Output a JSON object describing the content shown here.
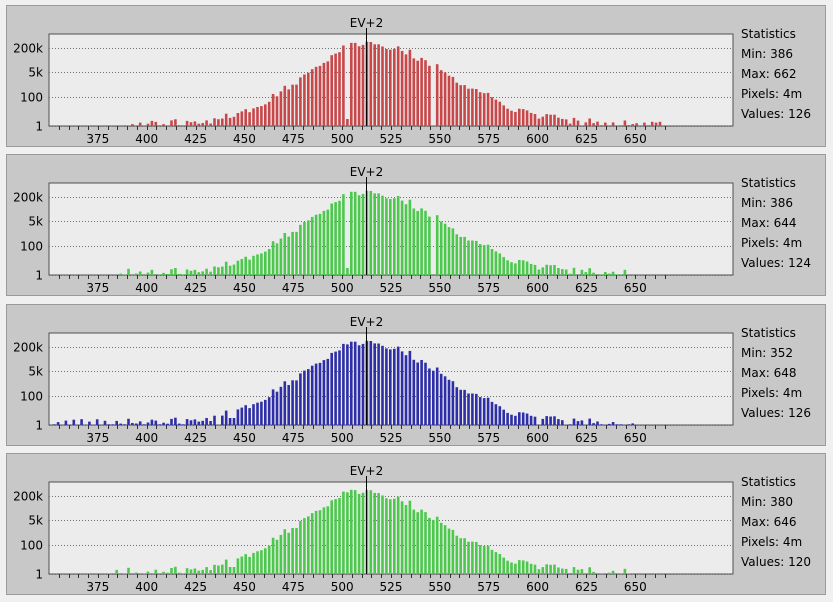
{
  "chart_data": [
    {
      "type": "bar",
      "title": "EV+2",
      "color": "#c8484a",
      "y_scale": "log",
      "ylim": [
        1,
        1000000
      ],
      "y_ticks": [
        {
          "label": "200k",
          "value": 200000
        },
        {
          "label": "5k",
          "value": 5000
        },
        {
          "label": "100",
          "value": 100
        },
        {
          "label": "1",
          "value": 1
        }
      ],
      "x_ticks": [
        "375",
        "400",
        "425",
        "450",
        "475",
        "500",
        "525",
        "550",
        "575",
        "600",
        "625",
        "650"
      ],
      "xlim": [
        350,
        700
      ],
      "marker_x": 512,
      "stats": {
        "heading": "Statistics",
        "min": "Min: 386",
        "max": "Max: 662",
        "pixels": "Pixels: 4m",
        "values": "Values: 126"
      },
      "profile": {
        "peak": 512,
        "left_width": 32,
        "right_width": 42,
        "min": 386,
        "max": 662,
        "gaps": [
          386,
          390,
          394,
          398,
          410,
          546,
          622,
          636,
          640,
          652
        ],
        "dip": [
          502,
          2
        ]
      }
    },
    {
      "type": "bar",
      "title": "EV+2",
      "color": "#4cc84c",
      "y_scale": "log",
      "ylim": [
        1,
        1000000
      ],
      "y_ticks": [
        {
          "label": "200k",
          "value": 200000
        },
        {
          "label": "5k",
          "value": 5000
        },
        {
          "label": "100",
          "value": 100
        },
        {
          "label": "1",
          "value": 1
        }
      ],
      "x_ticks": [
        "375",
        "400",
        "425",
        "450",
        "475",
        "500",
        "525",
        "550",
        "575",
        "600",
        "625",
        "650"
      ],
      "xlim": [
        350,
        700
      ],
      "marker_x": 512,
      "stats": {
        "heading": "Statistics",
        "min": "Min: 386",
        "max": "Max: 644",
        "pixels": "Pixels: 4m",
        "values": "Values: 124"
      },
      "profile": {
        "peak": 512,
        "left_width": 33,
        "right_width": 40,
        "min": 386,
        "max": 644,
        "gaps": [
          392,
          398,
          404,
          546,
          620,
          630
        ],
        "dip": [
          502,
          2
        ]
      }
    },
    {
      "type": "bar",
      "title": "EV+2",
      "color": "#2e2ea8",
      "y_scale": "log",
      "ylim": [
        1,
        1000000
      ],
      "y_ticks": [
        {
          "label": "200k",
          "value": 200000
        },
        {
          "label": "5k",
          "value": 5000
        },
        {
          "label": "100",
          "value": 100
        },
        {
          "label": "1",
          "value": 1
        }
      ],
      "x_ticks": [
        "375",
        "400",
        "425",
        "450",
        "475",
        "500",
        "525",
        "550",
        "575",
        "600",
        "625",
        "650"
      ],
      "xlim": [
        350,
        700
      ],
      "marker_x": 512,
      "stats": {
        "heading": "Statistics",
        "min": "Min: 352",
        "max": "Max: 648",
        "pixels": "Pixels: 4m",
        "values": "Values: 126"
      },
      "profile": {
        "peak": 512,
        "left_width": 34,
        "right_width": 38,
        "min": 352,
        "max": 648,
        "gaps": [
          356,
          360,
          364,
          368,
          372,
          376,
          436,
          600,
          614,
          624,
          634,
          644
        ],
        "dip": [
          442,
          3
        ]
      }
    },
    {
      "type": "bar",
      "title": "EV+2",
      "color": "#4cc84c",
      "y_scale": "log",
      "ylim": [
        1,
        1000000
      ],
      "y_ticks": [
        {
          "label": "200k",
          "value": 200000
        },
        {
          "label": "5k",
          "value": 5000
        },
        {
          "label": "100",
          "value": 100
        },
        {
          "label": "1",
          "value": 1
        }
      ],
      "x_ticks": [
        "375",
        "400",
        "425",
        "450",
        "475",
        "500",
        "525",
        "550",
        "575",
        "600",
        "625",
        "650"
      ],
      "xlim": [
        350,
        700
      ],
      "marker_x": 512,
      "stats": {
        "heading": "Statistics",
        "min": "Min: 380",
        "max": "Max: 646",
        "pixels": "Pixels: 4m",
        "values": "Values: 120"
      },
      "profile": {
        "peak": 510,
        "left_width": 33,
        "right_width": 40,
        "min": 380,
        "max": 646,
        "gaps": [
          382,
          386,
          392,
          396,
          402,
          406,
          624,
          630,
          634,
          640
        ],
        "dip": [
          442,
          3
        ]
      }
    }
  ]
}
